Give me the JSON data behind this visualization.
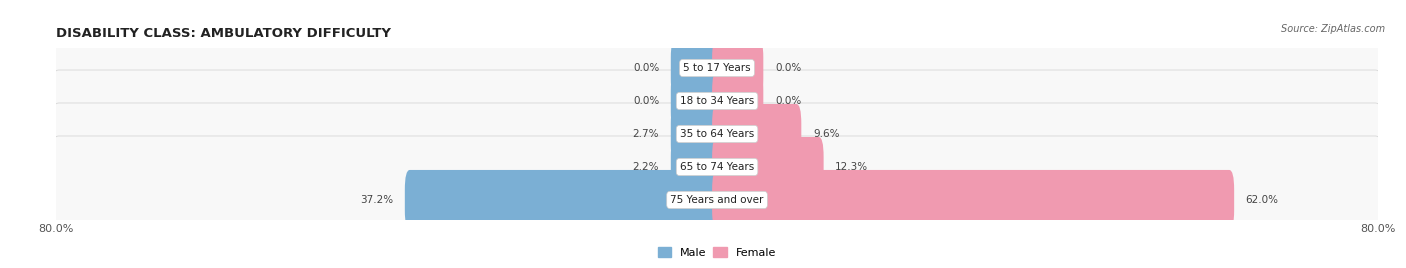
{
  "title": "DISABILITY CLASS: AMBULATORY DIFFICULTY",
  "source": "Source: ZipAtlas.com",
  "categories": [
    "5 to 17 Years",
    "18 to 34 Years",
    "35 to 64 Years",
    "65 to 74 Years",
    "75 Years and over"
  ],
  "male_values": [
    0.0,
    0.0,
    2.7,
    2.2,
    37.2
  ],
  "female_values": [
    0.0,
    0.0,
    9.6,
    12.3,
    62.0
  ],
  "male_color": "#7bafd4",
  "female_color": "#f09ab0",
  "row_bg_color": "#f0f0f0",
  "row_border_color": "#d8d8d8",
  "x_min": -80.0,
  "x_max": 80.0,
  "min_bar_width": 5.0,
  "label_color": "#444444",
  "title_fontsize": 9.5,
  "source_fontsize": 7,
  "axis_label_fontsize": 8,
  "bar_label_fontsize": 7.5,
  "category_fontsize": 7.5,
  "legend_fontsize": 8
}
